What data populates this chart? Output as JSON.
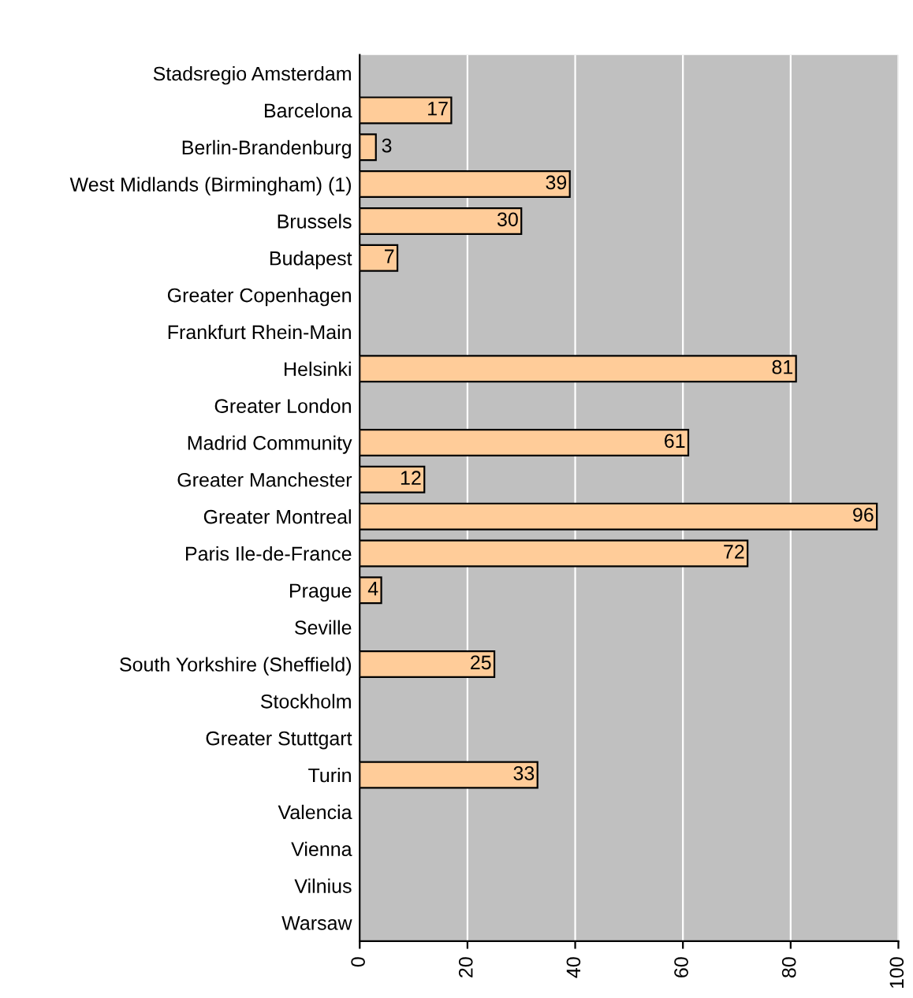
{
  "chart_data": {
    "type": "bar",
    "orientation": "horizontal",
    "categories": [
      "Stadsregio Amsterdam",
      "Barcelona",
      "Berlin-Brandenburg",
      "West Midlands (Birmingham) (1)",
      "Brussels",
      "Budapest",
      "Greater Copenhagen",
      "Frankfurt Rhein-Main",
      "Helsinki",
      "Greater London",
      "Madrid Community",
      "Greater Manchester",
      "Greater Montreal",
      "Paris Ile-de-France",
      "Prague",
      "Seville",
      "South Yorkshire (Sheffield)",
      "Stockholm",
      "Greater Stuttgart",
      "Turin",
      "Valencia",
      "Vienna",
      "Vilnius",
      "Warsaw"
    ],
    "values": [
      null,
      17,
      3,
      39,
      30,
      7,
      null,
      null,
      81,
      null,
      61,
      12,
      96,
      72,
      4,
      null,
      25,
      null,
      null,
      33,
      null,
      null,
      null,
      null
    ],
    "color": "#ffcc99",
    "xlim": [
      0,
      100
    ],
    "xticks": [
      0,
      20,
      40,
      60,
      80,
      100
    ],
    "grid": "x",
    "data_labels": true
  }
}
